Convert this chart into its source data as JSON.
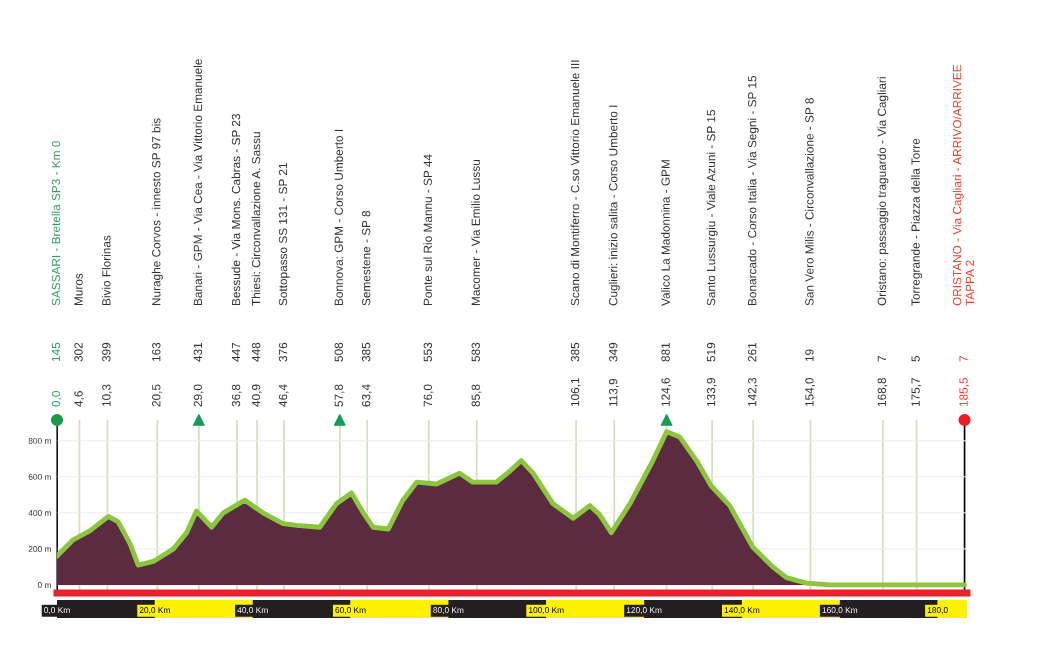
{
  "chart_data": [
    {
      "type": "other",
      "annotations": [
        "0,0",
        "145",
        "SASSARI - Bretella SP3 - Km 0",
        "4,6",
        "302",
        "Muros",
        "10,3",
        "399",
        "Bivio Florinas",
        "20,5",
        "163",
        "Nuraghe Corvos - innesto SP 97 bis",
        "29,0",
        "431",
        "Banari - GPM - Via Cea - Via Vittorio Emanuele",
        "36,8",
        "447",
        "Bessude - Via Mons. Cabras - SP 23",
        "40,9",
        "448",
        "Thiesi: Circonvallazione A. Sassu",
        "46,4",
        "376",
        "Sottopasso SS 131 - SP 21",
        "57,8",
        "508",
        "Bonnova: GPM - Corso Umberto I",
        "63,4",
        "385",
        "Semestene - SP 8",
        "76,0",
        "553",
        "Ponte sul Rio Mannu - SP 44",
        "85,8",
        "583",
        "Macomer - Via Emilio Lussu",
        "106,1",
        "385",
        "Scano di Montiferro - C.so Vittorio Emanuele III",
        "113,9",
        "349",
        "Cuglieri: inizio salita - Corso Umberto I",
        "124,6",
        "881",
        "Valico La Madonnina - GPM",
        "133,9",
        "519",
        "Santo Lussurgiu - Viale Azuni - SP 15",
        "142,3",
        "261",
        "Bonarcado - Corso Italia - Via Segni - SP 15",
        "154,0",
        "19",
        "San Vero Milis - Circonvallazione - SP 8",
        "168,8",
        "7",
        "Oristano: passaggio traguardo - Via Cagliari",
        "175,7",
        "5",
        "Torregrande - Piazza della Torre",
        "185,5",
        "7",
        "ORISTANO - Via Cagliari - ARRIVO/ARRIVEE\nTAPPA 2"
      ]
    },
    {
      "type": "area",
      "x": [
        0,
        3.3,
        6.7,
        10.5,
        12.5,
        14.9,
        16.6,
        19.7,
        23.8,
        26.5,
        28.5,
        29.9,
        31.6,
        34.0,
        38.4,
        42.1,
        46.2,
        49.0,
        53.7,
        57.1,
        60.2,
        62.6,
        64.6,
        67.7,
        70.7,
        73.5,
        77.6,
        82.3,
        85.0,
        89.8,
        92.5,
        94.9,
        97.3,
        101.4,
        105.5,
        108.9,
        110.9,
        113.3,
        117.1,
        121.8,
        124.6,
        127.3,
        130.7,
        133.7,
        137.5,
        142.2,
        146.3,
        149.1,
        153.2,
        157.9,
        185.5
      ],
      "series": [
        {
          "color": "#5b2c40",
          "values": [
            160,
            250,
            300,
            380,
            350,
            230,
            110,
            130,
            200,
            290,
            410,
            370,
            320,
            400,
            470,
            400,
            340,
            330,
            320,
            450,
            510,
            400,
            320,
            310,
            470,
            570,
            560,
            620,
            570,
            570,
            630,
            690,
            620,
            450,
            370,
            440,
            390,
            290,
            450,
            690,
            850,
            820,
            690,
            550,
            440,
            210,
            100,
            40,
            10,
            0,
            0
          ]
        }
      ],
      "xlim": [
        0,
        186
      ],
      "ylim": [
        -45,
        915
      ],
      "xticks": [
        {
          "value": 0,
          "label": "0,0 Km"
        },
        {
          "value": 20,
          "label": "20,0 Km"
        },
        {
          "value": 40,
          "label": "40,0 Km"
        },
        {
          "value": 60,
          "label": "60,0 Km"
        },
        {
          "value": 80,
          "label": "80,0 Km"
        },
        {
          "value": 100,
          "label": "100,0 Km"
        },
        {
          "value": 120,
          "label": "120,0 Km"
        },
        {
          "value": 140,
          "label": "140,0 Km"
        },
        {
          "value": 160,
          "label": "160,0 Km"
        },
        {
          "value": 180,
          "label": "180,0"
        }
      ],
      "yticks": [
        {
          "value": 0,
          "label": "0 m"
        },
        {
          "value": 200,
          "label": "200 m"
        },
        {
          "value": 400,
          "label": "400 m"
        },
        {
          "value": 600,
          "label": "600 m"
        },
        {
          "value": 800,
          "label": "800 m"
        }
      ],
      "grid": "y",
      "legend": false,
      "ref_lines": [
        {
          "axis": "x",
          "value": 0.0,
          "color": "#000000"
        },
        {
          "axis": "x",
          "value": 4.6,
          "color": "#cfe0bd"
        },
        {
          "axis": "x",
          "value": 10.3,
          "color": "#cfe0bd"
        },
        {
          "axis": "x",
          "value": 20.5,
          "color": "#cfe0bd"
        },
        {
          "axis": "x",
          "value": 29.0,
          "color": "#cfe0bd"
        },
        {
          "axis": "x",
          "value": 36.8,
          "color": "#cfe0bd"
        },
        {
          "axis": "x",
          "value": 40.9,
          "color": "#cfe0bd"
        },
        {
          "axis": "x",
          "value": 46.4,
          "color": "#cfe0bd"
        },
        {
          "axis": "x",
          "value": 57.8,
          "color": "#cfe0bd"
        },
        {
          "axis": "x",
          "value": 63.4,
          "color": "#cfe0bd"
        },
        {
          "axis": "x",
          "value": 76.0,
          "color": "#cfe0bd"
        },
        {
          "axis": "x",
          "value": 85.8,
          "color": "#cfe0bd"
        },
        {
          "axis": "x",
          "value": 106.1,
          "color": "#cfe0bd"
        },
        {
          "axis": "x",
          "value": 113.9,
          "color": "#cfe0bd"
        },
        {
          "axis": "x",
          "value": 124.6,
          "color": "#cfe0bd"
        },
        {
          "axis": "x",
          "value": 133.9,
          "color": "#cfe0bd"
        },
        {
          "axis": "x",
          "value": 142.3,
          "color": "#cfe0bd"
        },
        {
          "axis": "x",
          "value": 154.0,
          "color": "#cfe0bd"
        },
        {
          "axis": "x",
          "value": 168.8,
          "color": "#cfe0bd"
        },
        {
          "axis": "x",
          "value": 175.7,
          "color": "#cfe0bd"
        },
        {
          "axis": "x",
          "value": 185.5,
          "color": "#000000"
        }
      ]
    }
  ]
}
